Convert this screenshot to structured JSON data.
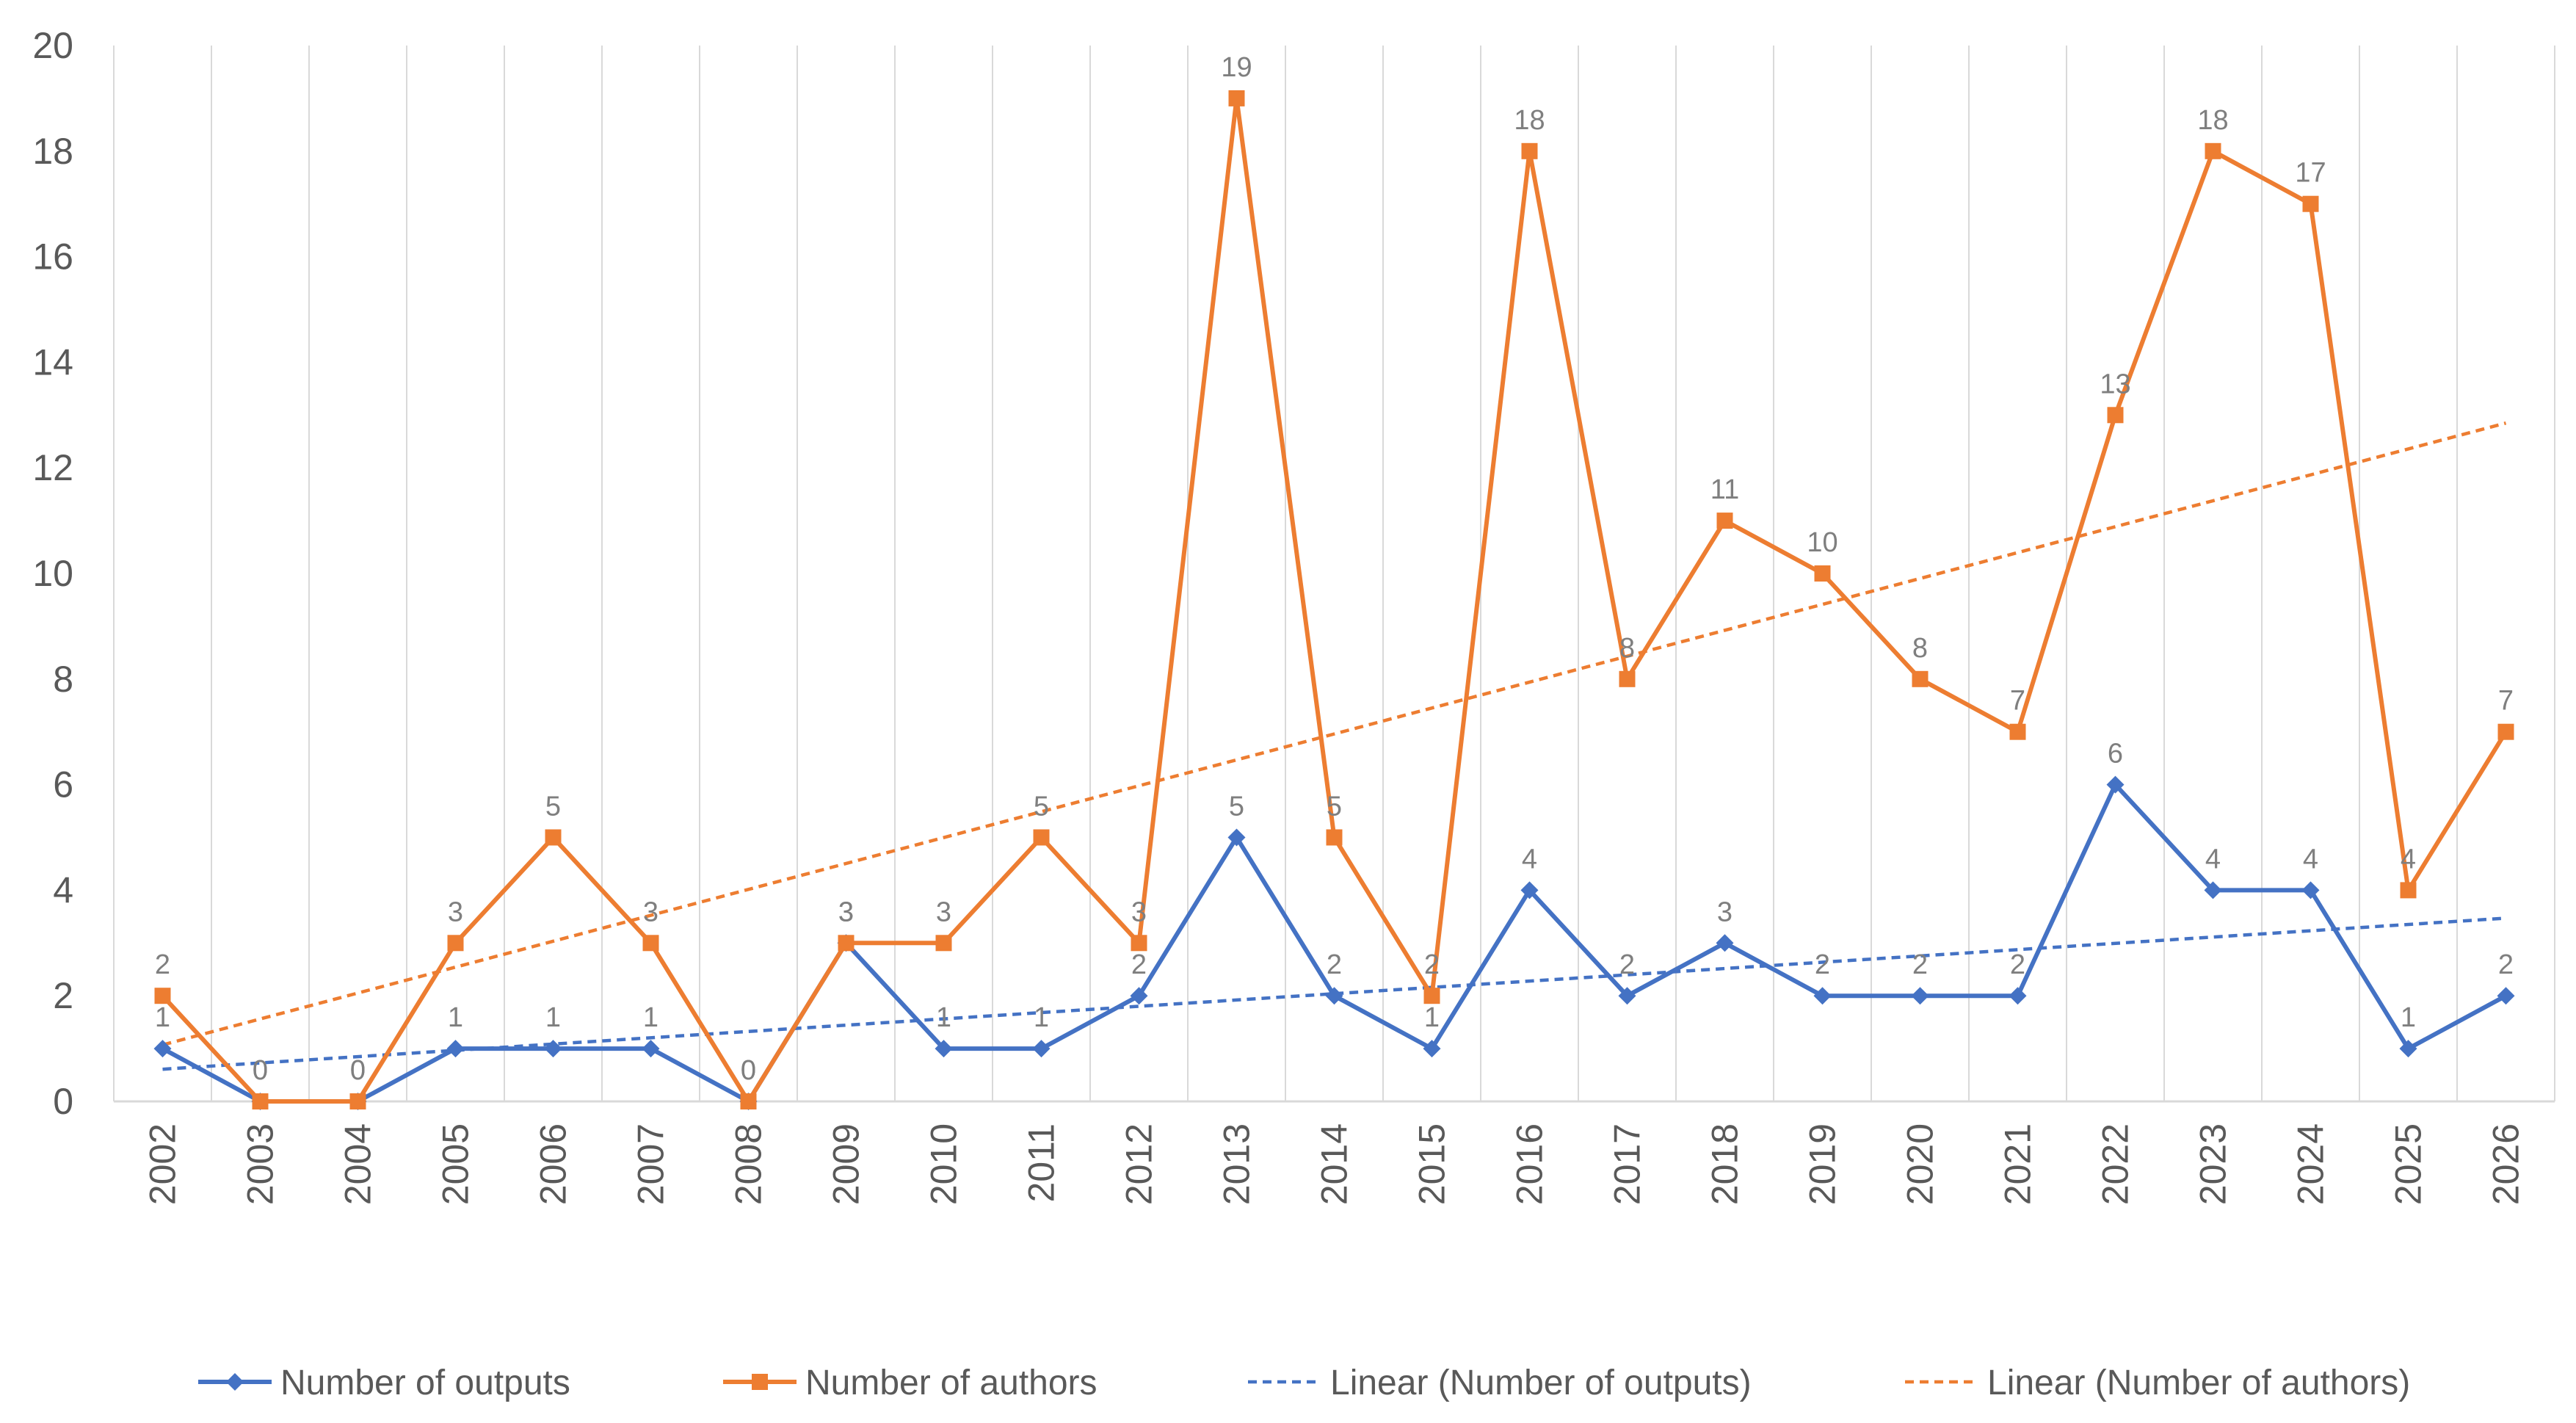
{
  "chart_data": {
    "type": "line",
    "categories": [
      "2002",
      "2003",
      "2004",
      "2005",
      "2006",
      "2007",
      "2008",
      "2009",
      "2010",
      "2011",
      "2012",
      "2013",
      "2014",
      "2015",
      "2016",
      "2017",
      "2018",
      "2019",
      "2020",
      "2021",
      "2022",
      "2023",
      "2024",
      "2025",
      "2026"
    ],
    "series": [
      {
        "name": "Number of outputs",
        "color": "#4472c4",
        "marker": "diamond",
        "values": [
          1,
          0,
          0,
          1,
          1,
          1,
          0,
          3,
          1,
          1,
          2,
          5,
          2,
          1,
          4,
          2,
          3,
          2,
          2,
          2,
          6,
          4,
          4,
          1,
          2
        ]
      },
      {
        "name": "Number of authors",
        "color": "#ed7d31",
        "marker": "square",
        "values": [
          2,
          0,
          0,
          3,
          5,
          3,
          0,
          3,
          3,
          5,
          3,
          19,
          5,
          2,
          18,
          8,
          11,
          10,
          8,
          7,
          13,
          18,
          17,
          4,
          7
        ]
      }
    ],
    "trendlines": [
      {
        "name": "Linear (Number of outputs)",
        "color": "#4472c4",
        "of_series": 0,
        "type": "linear"
      },
      {
        "name": "Linear (Number of authors)",
        "color": "#ed7d31",
        "of_series": 1,
        "type": "linear"
      }
    ],
    "ylim": [
      0,
      20
    ],
    "yticks": [
      "0",
      "2",
      "4",
      "6",
      "8",
      "10",
      "12",
      "14",
      "16",
      "18",
      "20"
    ],
    "xlabel": "",
    "ylabel": "",
    "grid": "vertical",
    "legend": "bottom",
    "data_labels": true
  }
}
